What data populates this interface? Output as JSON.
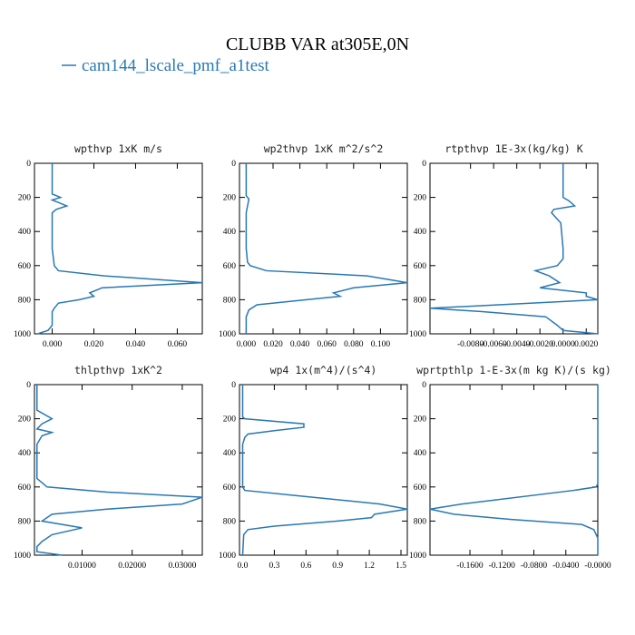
{
  "title": "CLUBB VAR at305E,0N",
  "legend": {
    "name": "cam144_lscale_pmf_a1test",
    "color": "#2878b4"
  },
  "chart_data": [
    {
      "type": "line",
      "title": "wpthvp  1xK m/s",
      "y": [
        0,
        180,
        200,
        215,
        230,
        250,
        270,
        290,
        310,
        400,
        500,
        600,
        630,
        660,
        700,
        730,
        760,
        780,
        800,
        820,
        850,
        870,
        900,
        950,
        980,
        1000
      ],
      "x": [
        0,
        0,
        0.004,
        0,
        0.003,
        0.007,
        0.002,
        0,
        0,
        0,
        0,
        0.001,
        0.003,
        0.025,
        0.072,
        0.024,
        0.018,
        0.02,
        0.013,
        0.003,
        0.001,
        0,
        0,
        0,
        -0.002,
        -0.007
      ],
      "xlim": [
        -0.0085,
        0.072
      ],
      "ylim": [
        0,
        1000
      ],
      "invert_y": true,
      "xticks": [
        {
          "value": 0,
          "label": "0.000"
        },
        {
          "value": 0.02,
          "label": "0.020"
        },
        {
          "value": 0.04,
          "label": "0.040"
        },
        {
          "value": 0.06,
          "label": "0.060"
        }
      ],
      "yticks": [
        0,
        200,
        400,
        600,
        800,
        1000
      ]
    },
    {
      "type": "line",
      "title": "wp2thvp  1xK m^2/s^2",
      "y": [
        0,
        190,
        210,
        250,
        290,
        350,
        500,
        580,
        600,
        630,
        660,
        700,
        730,
        760,
        780,
        800,
        830,
        860,
        900,
        1000
      ],
      "x": [
        0,
        0,
        0.002,
        0.001,
        0,
        0,
        0,
        0.001,
        0.003,
        0.015,
        0.09,
        0.12,
        0.08,
        0.065,
        0.07,
        0.045,
        0.008,
        0.002,
        0,
        0
      ],
      "xlim": [
        -0.005,
        0.12
      ],
      "ylim": [
        0,
        1000
      ],
      "invert_y": true,
      "xticks": [
        {
          "value": 0,
          "label": "0.000"
        },
        {
          "value": 0.02,
          "label": "0.020"
        },
        {
          "value": 0.04,
          "label": "0.040"
        },
        {
          "value": 0.06,
          "label": "0.060"
        },
        {
          "value": 0.08,
          "label": "0.080"
        },
        {
          "value": 0.1,
          "label": "0.100"
        }
      ],
      "yticks": [
        0,
        200,
        400,
        600,
        800,
        1000
      ]
    },
    {
      "type": "line",
      "title": "rtpthvp  1E-3x(kg/kg) K",
      "y": [
        0,
        180,
        200,
        220,
        250,
        270,
        290,
        350,
        500,
        560,
        600,
        630,
        660,
        700,
        730,
        760,
        780,
        800,
        850,
        870,
        900,
        950,
        980,
        1000
      ],
      "x": [
        0,
        0,
        0,
        0.0005,
        0.001,
        -0.0008,
        -0.001,
        -0.0002,
        0,
        0,
        -0.0005,
        -0.0024,
        -0.0012,
        -0.0003,
        -0.002,
        0.002,
        0.002,
        0.003,
        -0.0115,
        -0.007,
        -0.0015,
        -0.0005,
        0,
        0.003
      ],
      "xlim": [
        -0.0115,
        0.003
      ],
      "ylim": [
        0,
        1000
      ],
      "invert_y": true,
      "xticks": [
        {
          "value": -0.008,
          "label": "-0.0080"
        },
        {
          "value": -0.006,
          "label": "-0.0060"
        },
        {
          "value": -0.004,
          "label": "-0.0040"
        },
        {
          "value": -0.002,
          "label": "-0.0020"
        },
        {
          "value": 0,
          "label": "0.0000"
        },
        {
          "value": 0.002,
          "label": "0.0020"
        }
      ],
      "yticks": [
        0,
        200,
        400,
        600,
        800,
        1000
      ]
    },
    {
      "type": "line",
      "title": "thlpthvp  1xK^2",
      "y": [
        0,
        150,
        200,
        230,
        260,
        280,
        300,
        350,
        550,
        600,
        630,
        660,
        700,
        730,
        760,
        800,
        840,
        880,
        920,
        950,
        980,
        1000
      ],
      "x": [
        0.001,
        0.001,
        0.004,
        0.002,
        0.001,
        0.004,
        0.002,
        0.001,
        0.001,
        0.003,
        0.015,
        0.034,
        0.03,
        0.015,
        0.004,
        0.002,
        0.01,
        0.004,
        0.002,
        0.001,
        0.001,
        0.006
      ],
      "xlim": [
        0.0005,
        0.034
      ],
      "ylim": [
        0,
        1000
      ],
      "invert_y": true,
      "xticks": [
        {
          "value": 0.01,
          "label": "0.01000"
        },
        {
          "value": 0.02,
          "label": "0.02000"
        },
        {
          "value": 0.03,
          "label": "0.03000"
        }
      ],
      "yticks": [
        0,
        200,
        400,
        600,
        800,
        1000
      ]
    },
    {
      "type": "line",
      "title": "wp4  1x(m^4)/(s^4)",
      "y": [
        0,
        190,
        200,
        230,
        250,
        270,
        290,
        310,
        350,
        600,
        620,
        650,
        700,
        730,
        760,
        780,
        800,
        830,
        850,
        880,
        1000
      ],
      "x": [
        0,
        0,
        0.02,
        0.58,
        0.58,
        0.3,
        0.05,
        0.02,
        0,
        0,
        0.02,
        0.5,
        1.3,
        1.56,
        1.25,
        1.22,
        0.9,
        0.3,
        0.05,
        0.01,
        0
      ],
      "xlim": [
        -0.03,
        1.56
      ],
      "ylim": [
        0,
        1000
      ],
      "invert_y": true,
      "xticks": [
        {
          "value": 0,
          "label": "0.0"
        },
        0.3,
        0.6,
        0.9,
        1.2,
        1.5
      ],
      "yticks": [
        0,
        200,
        400,
        600,
        800,
        1000
      ]
    },
    {
      "type": "line",
      "title": "wprtpthlp  1-E-3x(m kg K)/(s kg)",
      "y": [
        0,
        580,
        600,
        620,
        700,
        730,
        760,
        790,
        820,
        850,
        900,
        1000
      ],
      "x": [
        0,
        0,
        -0.002,
        -0.03,
        -0.17,
        -0.21,
        -0.18,
        -0.11,
        -0.02,
        -0.005,
        0,
        0
      ],
      "xlim": [
        -0.21,
        0
      ],
      "ylim": [
        0,
        1000
      ],
      "invert_y": true,
      "xticks": [
        {
          "value": -0.16,
          "label": "-0.1600"
        },
        {
          "value": -0.12,
          "label": "-0.1200"
        },
        {
          "value": -0.08,
          "label": "-0.0800"
        },
        {
          "value": -0.04,
          "label": "-0.0400"
        },
        {
          "value": 0,
          "label": "-0.0000"
        }
      ],
      "yticks": [
        0,
        200,
        400,
        600,
        800,
        1000
      ]
    }
  ]
}
